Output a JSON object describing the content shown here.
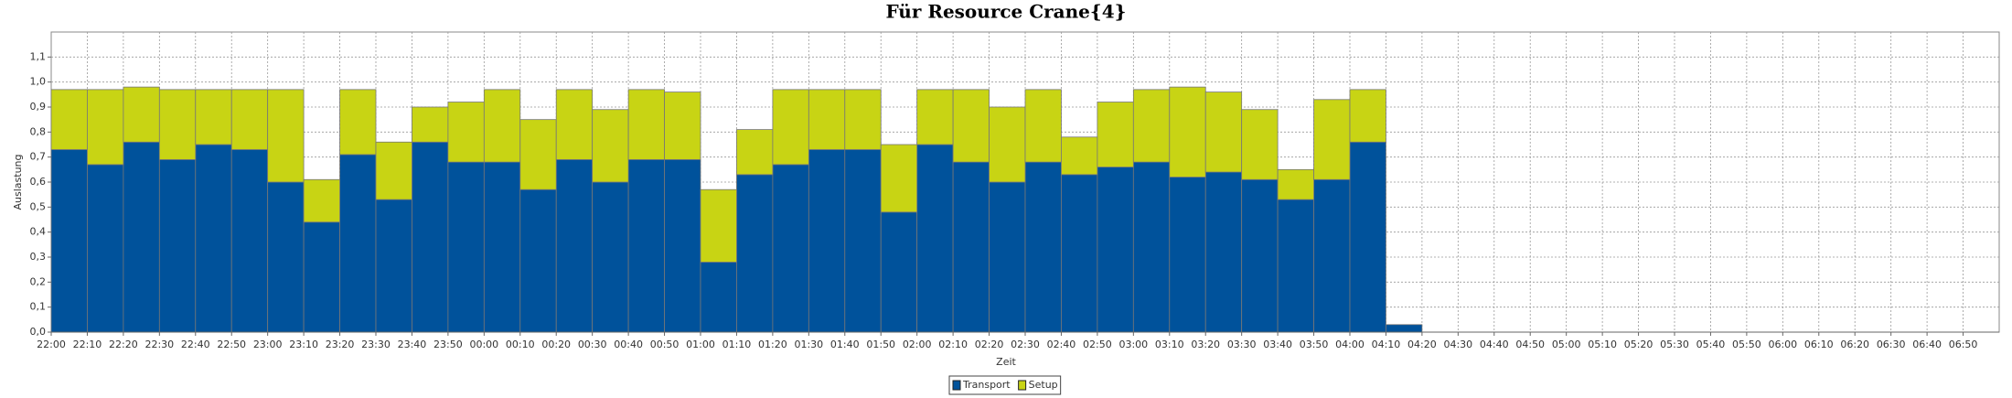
{
  "chart_data": {
    "type": "bar",
    "stacked": true,
    "title": "Für Resource Crane{4}",
    "x_label": "Zeit",
    "y_label": "Auslastung",
    "categories": [
      "22:00",
      "22:10",
      "22:20",
      "22:30",
      "22:40",
      "22:50",
      "23:00",
      "23:10",
      "23:20",
      "23:30",
      "23:40",
      "23:50",
      "00:00",
      "00:10",
      "00:20",
      "00:30",
      "00:40",
      "00:50",
      "01:00",
      "01:10",
      "01:20",
      "01:30",
      "01:40",
      "01:50",
      "02:00",
      "02:10",
      "02:20",
      "02:30",
      "02:40",
      "02:50",
      "03:00",
      "03:10",
      "03:20",
      "03:30",
      "03:40",
      "03:50",
      "04:00",
      "04:10",
      "04:20",
      "04:30",
      "04:40",
      "04:50",
      "05:00",
      "05:10",
      "05:20",
      "05:30",
      "05:40",
      "05:50",
      "06:00",
      "06:10",
      "06:20",
      "06:30",
      "06:40",
      "06:50"
    ],
    "series": [
      {
        "name": "Transport",
        "color": "#00529b",
        "values": [
          0.73,
          0.67,
          0.76,
          0.69,
          0.75,
          0.73,
          0.6,
          0.44,
          0.71,
          0.53,
          0.76,
          0.68,
          0.68,
          0.57,
          0.69,
          0.6,
          0.69,
          0.69,
          0.28,
          0.63,
          0.67,
          0.73,
          0.73,
          0.48,
          0.75,
          0.68,
          0.6,
          0.68,
          0.63,
          0.66,
          0.68,
          0.62,
          0.64,
          0.61,
          0.53,
          0.61,
          0.76,
          0.03,
          null,
          null,
          null,
          null,
          null,
          null,
          null,
          null,
          null,
          null,
          null,
          null,
          null,
          null,
          null,
          null
        ]
      },
      {
        "name": "Setup",
        "color": "#c8d414",
        "values": [
          0.24,
          0.3,
          0.22,
          0.28,
          0.22,
          0.24,
          0.37,
          0.17,
          0.26,
          0.23,
          0.14,
          0.24,
          0.29,
          0.28,
          0.28,
          0.29,
          0.28,
          0.27,
          0.29,
          0.18,
          0.3,
          0.24,
          0.24,
          0.27,
          0.22,
          0.29,
          0.3,
          0.29,
          0.15,
          0.26,
          0.29,
          0.36,
          0.32,
          0.28,
          0.12,
          0.32,
          0.21,
          0,
          null,
          null,
          null,
          null,
          null,
          null,
          null,
          null,
          null,
          null,
          null,
          null,
          null,
          null,
          null,
          null
        ]
      }
    ],
    "ylim": [
      0,
      1.2
    ],
    "yticks": [
      {
        "value": 0,
        "label": "0,0"
      },
      {
        "value": 0.1,
        "label": "0,1"
      },
      {
        "value": 0.2,
        "label": "0,2"
      },
      {
        "value": 0.3,
        "label": "0,3"
      },
      {
        "value": 0.4,
        "label": "0,4"
      },
      {
        "value": 0.5,
        "label": "0,5"
      },
      {
        "value": 0.6,
        "label": "0,6"
      },
      {
        "value": 0.7,
        "label": "0,7"
      },
      {
        "value": 0.8,
        "label": "0,8"
      },
      {
        "value": 0.9,
        "label": "0,9"
      },
      {
        "value": 1.0,
        "label": "1,0"
      },
      {
        "value": 1.1,
        "label": "1,1"
      }
    ],
    "grid": true,
    "legend": "bottom"
  }
}
